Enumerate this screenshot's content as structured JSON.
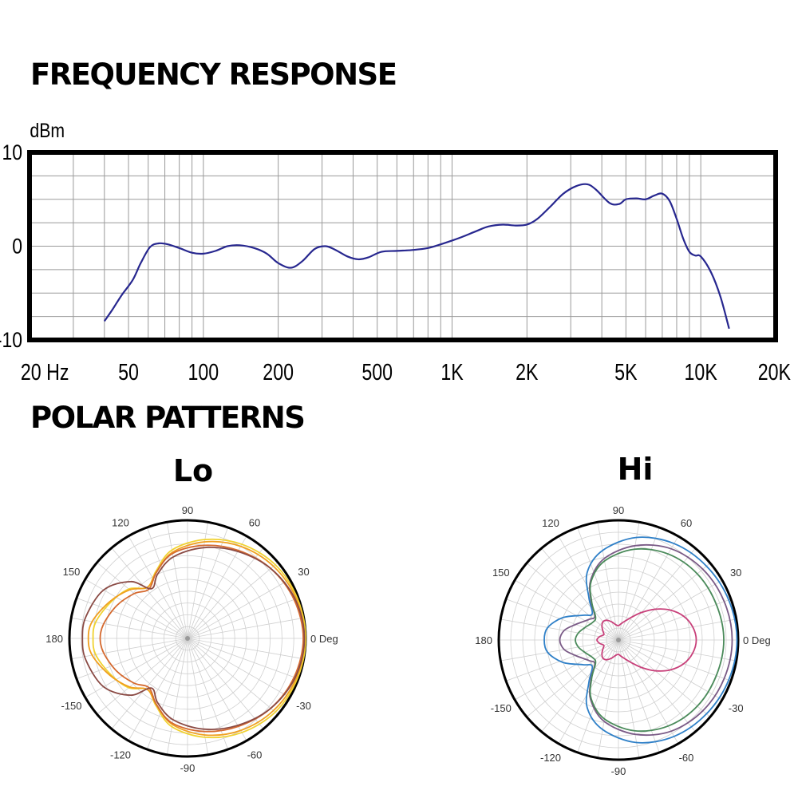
{
  "headings": {
    "frequency_response": "FREQUENCY RESPONSE",
    "polar_patterns": "POLAR PATTERNS"
  },
  "chart_data": [
    {
      "type": "line",
      "title": "FREQUENCY RESPONSE",
      "ylabel": "dBm",
      "x_scale": "log",
      "xlim": [
        20,
        20000
      ],
      "ylim": [
        -10,
        10
      ],
      "grid": true,
      "x_ticks": [
        {
          "value": 20,
          "label": "20 Hz"
        },
        {
          "value": 50,
          "label": "50"
        },
        {
          "value": 100,
          "label": "100"
        },
        {
          "value": 200,
          "label": "200"
        },
        {
          "value": 500,
          "label": "500"
        },
        {
          "value": 1000,
          "label": "1K"
        },
        {
          "value": 2000,
          "label": "2K"
        },
        {
          "value": 5000,
          "label": "5K"
        },
        {
          "value": 10000,
          "label": "10K"
        },
        {
          "value": 20000,
          "label": "20K"
        }
      ],
      "y_ticks": [
        {
          "value": 10,
          "label": "10"
        },
        {
          "value": 0,
          "label": "0"
        },
        {
          "value": -10,
          "label": "-10"
        }
      ],
      "series": [
        {
          "color": "#27278f",
          "x": [
            40,
            43,
            47,
            52,
            56,
            61,
            66,
            72,
            80,
            90,
            100,
            112,
            125,
            140,
            160,
            180,
            200,
            225,
            250,
            280,
            310,
            340,
            380,
            420,
            460,
            520,
            600,
            700,
            800,
            900,
            1000,
            1100,
            1250,
            1400,
            1600,
            1800,
            2000,
            2200,
            2500,
            2800,
            3150,
            3500,
            3800,
            4300,
            4700,
            5000,
            5500,
            6000,
            6500,
            7000,
            7500,
            8000,
            8500,
            9000,
            9500,
            10000,
            11000,
            12000,
            13000
          ],
          "y": [
            -8.0,
            -6.8,
            -5.2,
            -3.6,
            -1.8,
            -0.1,
            0.3,
            0.2,
            -0.2,
            -0.7,
            -0.8,
            -0.5,
            0.0,
            0.1,
            -0.2,
            -0.8,
            -1.8,
            -2.3,
            -1.6,
            -0.3,
            0.0,
            -0.4,
            -1.1,
            -1.4,
            -1.2,
            -0.6,
            -0.5,
            -0.4,
            -0.2,
            0.2,
            0.6,
            1.0,
            1.6,
            2.1,
            2.3,
            2.2,
            2.3,
            2.9,
            4.3,
            5.6,
            6.4,
            6.6,
            6.0,
            4.6,
            4.5,
            5.0,
            5.1,
            5.0,
            5.4,
            5.6,
            4.8,
            2.9,
            0.8,
            -0.6,
            -1.0,
            -1.1,
            -2.8,
            -5.4,
            -8.8
          ]
        }
      ]
    },
    {
      "type": "polar",
      "title": "Lo",
      "theta_labels": [
        "0 Deg",
        "30",
        "60",
        "90",
        "120",
        "150",
        "180",
        "-150",
        "-120",
        "-90",
        "-60",
        "-30"
      ],
      "grid": true,
      "series": [
        {
          "color": "#f0d230",
          "theta": [
            0,
            20,
            40,
            60,
            80,
            100,
            115,
            128,
            140,
            155,
            170,
            180
          ],
          "r": [
            1.0,
            0.99,
            0.97,
            0.92,
            0.85,
            0.76,
            0.63,
            0.55,
            0.65,
            0.72,
            0.79,
            0.8
          ]
        },
        {
          "color": "#f0a020",
          "theta": [
            0,
            20,
            40,
            60,
            80,
            100,
            115,
            128,
            140,
            155,
            170,
            180
          ],
          "r": [
            0.99,
            0.98,
            0.95,
            0.9,
            0.83,
            0.74,
            0.62,
            0.55,
            0.64,
            0.73,
            0.82,
            0.84
          ]
        },
        {
          "color": "#d56a30",
          "theta": [
            0,
            20,
            40,
            60,
            80,
            100,
            115,
            128,
            140,
            155,
            170,
            180
          ],
          "r": [
            0.98,
            0.96,
            0.92,
            0.86,
            0.8,
            0.73,
            0.62,
            0.53,
            0.59,
            0.66,
            0.72,
            0.74
          ]
        },
        {
          "color": "#8a4a44",
          "theta": [
            0,
            20,
            40,
            60,
            80,
            100,
            115,
            126,
            135,
            150,
            168,
            180
          ],
          "r": [
            0.99,
            0.97,
            0.92,
            0.85,
            0.78,
            0.7,
            0.6,
            0.52,
            0.68,
            0.82,
            0.88,
            0.89
          ]
        }
      ]
    },
    {
      "type": "polar",
      "title": "Hi",
      "theta_labels": [
        "0 Deg",
        "30",
        "60",
        "90",
        "120",
        "150",
        "180",
        "-150",
        "-120",
        "-90",
        "-60",
        "-30"
      ],
      "grid": true,
      "series": [
        {
          "color": "#2f80c8",
          "theta": [
            0,
            20,
            40,
            60,
            80,
            100,
            115,
            125,
            135,
            145,
            158,
            170,
            180
          ],
          "r": [
            0.99,
            0.98,
            0.96,
            0.93,
            0.87,
            0.76,
            0.62,
            0.43,
            0.31,
            0.36,
            0.5,
            0.6,
            0.62
          ]
        },
        {
          "color": "#7a5a86",
          "theta": [
            0,
            20,
            40,
            60,
            80,
            100,
            115,
            125,
            135,
            145,
            160,
            170,
            180
          ],
          "r": [
            0.95,
            0.94,
            0.92,
            0.88,
            0.8,
            0.69,
            0.55,
            0.4,
            0.28,
            0.3,
            0.38,
            0.46,
            0.49
          ]
        },
        {
          "color": "#4a8a5a",
          "theta": [
            0,
            20,
            40,
            60,
            80,
            100,
            115,
            125,
            135,
            145,
            160,
            170,
            180
          ],
          "r": [
            0.88,
            0.87,
            0.86,
            0.83,
            0.77,
            0.67,
            0.54,
            0.39,
            0.27,
            0.26,
            0.3,
            0.34,
            0.36
          ]
        },
        {
          "color": "#c8407a",
          "theta": [
            0,
            10,
            20,
            30,
            40,
            50,
            60,
            70,
            80,
            90,
            100,
            110,
            120,
            130,
            140,
            150,
            160,
            170,
            180
          ],
          "r": [
            0.65,
            0.63,
            0.58,
            0.5,
            0.4,
            0.3,
            0.22,
            0.17,
            0.14,
            0.12,
            0.13,
            0.16,
            0.19,
            0.2,
            0.18,
            0.15,
            0.13,
            0.16,
            0.18
          ]
        }
      ]
    }
  ]
}
